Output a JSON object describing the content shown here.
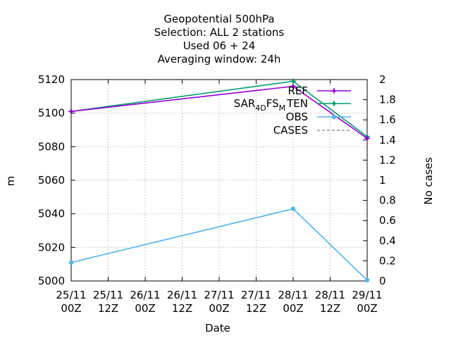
{
  "chart_data": {
    "type": "line",
    "title_lines": [
      "Geopotential 500hPa",
      "Selection: ALL       2 stations",
      "Used  06 + 24",
      "Averaging window: 24h"
    ],
    "xlabel": "Date",
    "ylabel": "m",
    "y2label": "No cases",
    "x_ticks": [
      [
        "25/11",
        "00Z"
      ],
      [
        "25/11",
        "12Z"
      ],
      [
        "26/11",
        "00Z"
      ],
      [
        "26/11",
        "12Z"
      ],
      [
        "27/11",
        "00Z"
      ],
      [
        "27/11",
        "12Z"
      ],
      [
        "28/11",
        "00Z"
      ],
      [
        "28/11",
        "12Z"
      ],
      [
        "29/11",
        "00Z"
      ]
    ],
    "xlim": [
      0,
      96
    ],
    "ylim": [
      5000,
      5120
    ],
    "y_ticks": [
      5000,
      5020,
      5040,
      5060,
      5080,
      5100,
      5120
    ],
    "y2lim": [
      0,
      2
    ],
    "y2_ticks": [
      "0",
      "0.2",
      "0.4",
      "0.6",
      "0.8",
      "1",
      "1.2",
      "1.4",
      "1.6",
      "1.8",
      "2"
    ],
    "grid": true,
    "legend_position": "top-right",
    "series": [
      {
        "name": "REF",
        "color": "#9400d3",
        "marker": "plus",
        "axis": "y1",
        "x": [
          0,
          72,
          96
        ],
        "values": [
          5101,
          5116,
          5085
        ]
      },
      {
        "name": "SAR_4D FS_M TEN",
        "name_base": "SAR",
        "name_sub1": "4D",
        "name_mid": "FS",
        "name_sub2": "M",
        "name_tail": "TEN",
        "color": "#009e73",
        "marker": "plus",
        "axis": "y1",
        "x": [
          0,
          72,
          96
        ],
        "values": [
          5101,
          5119,
          5086
        ]
      },
      {
        "name": "OBS",
        "color": "#56b4e9",
        "marker": "dot",
        "axis": "y1",
        "x": [
          0,
          72,
          96
        ],
        "values": [
          5011,
          5043,
          5000.5
        ]
      },
      {
        "name": "CASES",
        "color": "#808080",
        "marker": "none",
        "dashed": true,
        "axis": "y2",
        "x": [],
        "values": []
      }
    ]
  }
}
